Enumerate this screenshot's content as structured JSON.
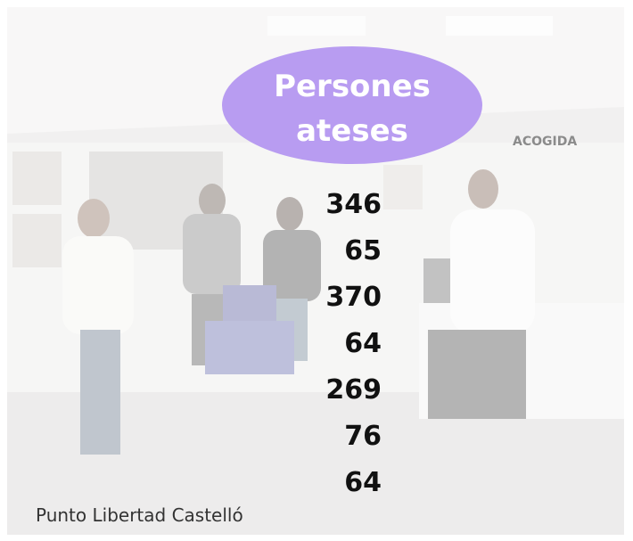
{
  "badge": {
    "title": "Persones ateses"
  },
  "numbers": [
    346,
    65,
    370,
    64,
    269,
    76,
    64
  ],
  "caption": "Punto Libertad Castelló",
  "sign": "ACOGIDA"
}
